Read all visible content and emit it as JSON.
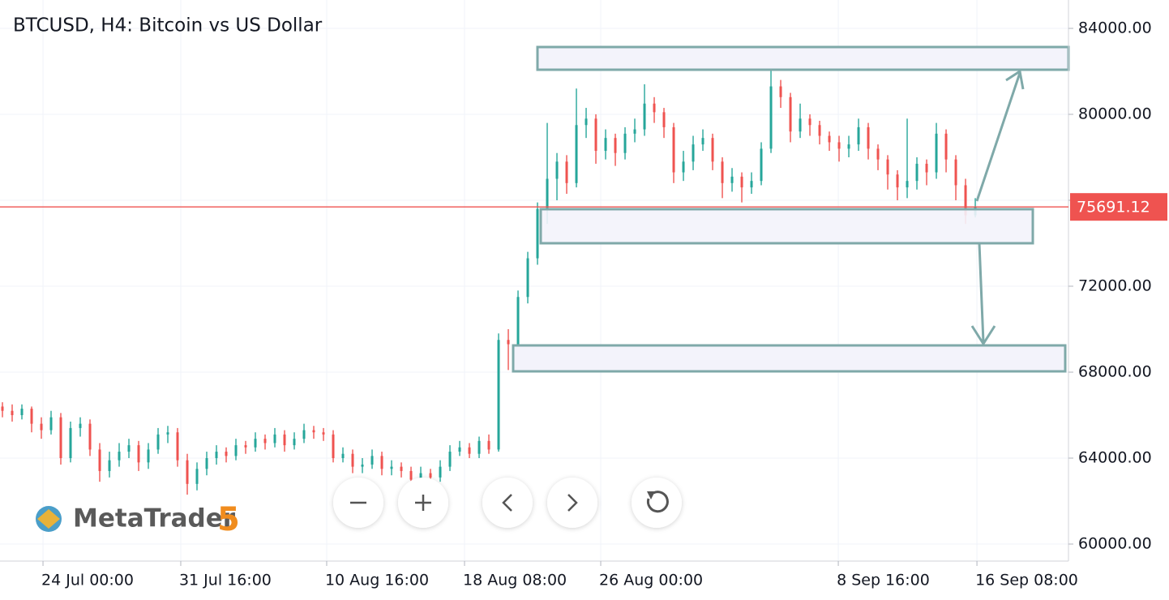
{
  "chart_data": {
    "type": "candlestick",
    "title": "BTCUSD, H4: Bitcoin vs US Dollar",
    "up_color": "#26a69a",
    "down_color": "#ef5350",
    "grid": true,
    "open": [
      66400,
      66200,
      66000,
      66300,
      65600,
      65300,
      65900,
      64000,
      65400,
      65600,
      64400,
      63400,
      63900,
      64300,
      64600,
      63800,
      64400,
      65100,
      65200,
      63900,
      62800,
      63500,
      64000,
      64300,
      64100,
      64600,
      64500,
      64900,
      64700,
      65100,
      64600,
      64900,
      65300,
      65200,
      65100,
      64000,
      64200,
      63600,
      63700,
      64100,
      63500,
      63600,
      63400,
      63000,
      63300,
      63100,
      63600,
      64300,
      64500,
      64200,
      64800,
      64400,
      69500,
      69300,
      71500,
      73300,
      75600,
      77000,
      77800,
      76800,
      79500,
      79800,
      78300,
      78900,
      78200,
      79100,
      79300,
      80500,
      80100,
      79400,
      77300,
      77800,
      78600,
      78900,
      77800,
      76800,
      77100,
      76600,
      76900,
      78400,
      81300,
      80800,
      79200,
      79800,
      79500,
      79000,
      78700,
      78400,
      78600,
      79400,
      78400,
      77900,
      77200,
      76600,
      76900,
      77700,
      77300,
      79100,
      77900,
      76700,
      75300
    ],
    "high": [
      66600,
      66500,
      66500,
      66400,
      65900,
      66200,
      66100,
      65700,
      65900,
      65800,
      64700,
      64300,
      64700,
      64900,
      64800,
      64700,
      65400,
      65500,
      65400,
      64200,
      63800,
      64300,
      64600,
      64500,
      64900,
      64800,
      65200,
      65100,
      65400,
      65300,
      65200,
      65600,
      65500,
      65400,
      65300,
      64500,
      64400,
      64000,
      64400,
      64300,
      63900,
      63800,
      63600,
      63600,
      63500,
      63900,
      64600,
      64800,
      64700,
      65000,
      65100,
      69800,
      70000,
      71800,
      73600,
      75900,
      79600,
      78200,
      78100,
      81200,
      80300,
      80000,
      79300,
      79100,
      79400,
      79800,
      81400,
      80800,
      80300,
      79600,
      78300,
      79000,
      79300,
      79100,
      78000,
      77500,
      77300,
      77300,
      78700,
      82200,
      81600,
      81000,
      80500,
      80000,
      79700,
      79200,
      79000,
      79000,
      79800,
      79600,
      78600,
      78100,
      77400,
      79800,
      78000,
      77900,
      79600,
      79300,
      78100,
      77000,
      76100
    ],
    "low": [
      65900,
      65700,
      65800,
      65200,
      64900,
      65100,
      63700,
      63800,
      65000,
      64100,
      62900,
      63100,
      63600,
      64000,
      63400,
      63500,
      64200,
      64700,
      63600,
      62300,
      62500,
      63200,
      63700,
      63800,
      63900,
      64200,
      64300,
      64400,
      64500,
      64300,
      64400,
      64700,
      64900,
      64800,
      63800,
      63800,
      63300,
      63300,
      63500,
      63200,
      63200,
      63100,
      62700,
      62700,
      62800,
      62900,
      63400,
      64100,
      64000,
      64000,
      64200,
      64300,
      68100,
      69000,
      71200,
      73000,
      74900,
      76000,
      76300,
      76600,
      78900,
      77700,
      77900,
      77600,
      77900,
      78700,
      79000,
      79600,
      78900,
      76800,
      76900,
      77400,
      78300,
      77400,
      76100,
      76400,
      75900,
      76300,
      76700,
      78200,
      80300,
      78700,
      78900,
      79000,
      78600,
      78300,
      77800,
      78000,
      78300,
      77900,
      77400,
      76500,
      76000,
      76100,
      76500,
      76700,
      77000,
      77300,
      76000,
      74900,
      75200
    ],
    "close": [
      66200,
      66000,
      66300,
      65600,
      65300,
      65900,
      64000,
      65400,
      65600,
      64400,
      63400,
      63900,
      64300,
      64600,
      63800,
      64400,
      65100,
      65200,
      63900,
      62800,
      63500,
      64000,
      64300,
      64100,
      64600,
      64500,
      64900,
      64700,
      65100,
      64600,
      64900,
      65300,
      65200,
      65100,
      64000,
      64200,
      63600,
      63700,
      64100,
      63500,
      63600,
      63400,
      63000,
      63300,
      63100,
      63600,
      64300,
      64500,
      64200,
      64800,
      64400,
      69500,
      69300,
      71500,
      73300,
      75600,
      77000,
      77800,
      76800,
      79500,
      79800,
      78300,
      78900,
      78200,
      79100,
      79300,
      80500,
      80100,
      79400,
      77300,
      77800,
      78600,
      78900,
      77800,
      76800,
      77100,
      76600,
      76900,
      78400,
      81300,
      80800,
      79200,
      79800,
      79500,
      79000,
      78700,
      78400,
      78600,
      79400,
      78400,
      77900,
      77200,
      76600,
      76900,
      77700,
      77300,
      79100,
      77900,
      76700,
      75300,
      75700
    ],
    "xlim": [
      -0.25,
      109.58
    ],
    "xticks": [
      {
        "value": 4.17,
        "label": "24 Jul 00:00"
      },
      {
        "value": 18.33,
        "label": "31 Jul 16:00"
      },
      {
        "value": 33.33,
        "label": "10 Aug 16:00"
      },
      {
        "value": 47.5,
        "label": "18 Aug 08:00"
      },
      {
        "value": 61.5,
        "label": "26 Aug 00:00"
      },
      {
        "value": 85.92,
        "label": "8 Sep 16:00"
      },
      {
        "value": 100.17,
        "label": "16 Sep 08:00"
      }
    ],
    "ylim": [
      59208,
      85321
    ],
    "yticks": [
      {
        "value": 60000,
        "label": "60000.00"
      },
      {
        "value": 64000,
        "label": "64000.00"
      },
      {
        "value": 68000,
        "label": "68000.00"
      },
      {
        "value": 72000,
        "label": "72000.00"
      },
      {
        "value": 76000,
        "label": "76000.00"
      },
      {
        "value": 80000,
        "label": "80000.00"
      },
      {
        "value": 84000,
        "label": "84000.00"
      }
    ],
    "price_line": {
      "value": 75691.12,
      "label": "75691.12",
      "color": "#ef5350"
    },
    "logo": {
      "name": "MetaTrader",
      "version": "5"
    }
  }
}
